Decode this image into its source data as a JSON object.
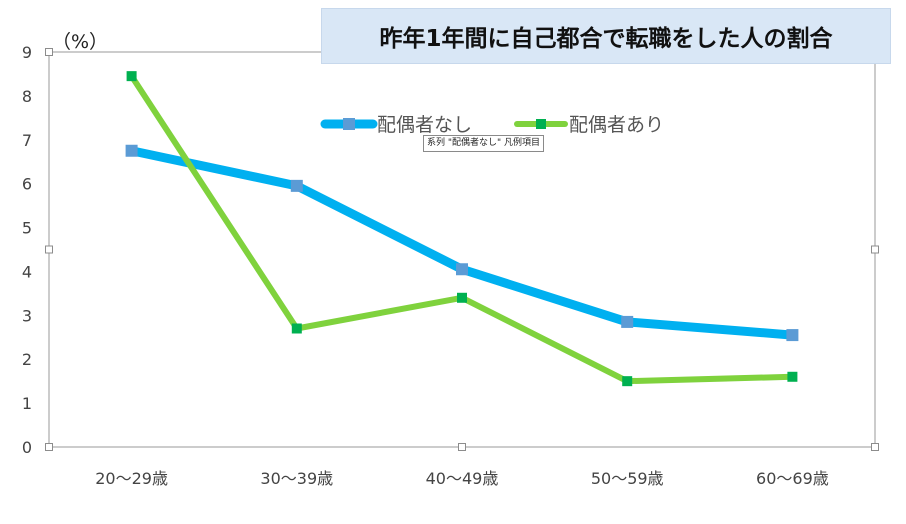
{
  "chart_data": {
    "type": "line",
    "title": "昨年1年間に自己都合で転職をした人の割合",
    "ylabel": "（%）",
    "xlabel": "",
    "categories": [
      "20〜29歳",
      "30〜39歳",
      "40〜49歳",
      "50〜59歳",
      "60〜69歳"
    ],
    "ylim": [
      0,
      9
    ],
    "yticks": [
      "0",
      "1",
      "2",
      "3",
      "4",
      "5",
      "6",
      "7",
      "8",
      "9"
    ],
    "grid": false,
    "legend_position": "top-center",
    "series": [
      {
        "name": "配偶者なし",
        "values": [
          6.75,
          5.95,
          4.05,
          2.85,
          2.55
        ],
        "color": "#00b0f0",
        "marker_color": "#5b9bd5"
      },
      {
        "name": "配偶者あり",
        "values": [
          8.45,
          2.7,
          3.4,
          1.5,
          1.6
        ],
        "color": "#7fd23d",
        "marker_color": "#00b050"
      }
    ]
  },
  "tooltip": {
    "text": "系列 \"配偶者なし\" 凡例項目"
  }
}
